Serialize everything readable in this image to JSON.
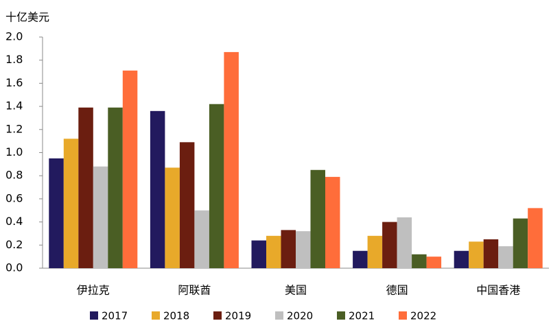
{
  "chart_data": {
    "type": "bar",
    "y_axis_label": "十亿美元",
    "categories": [
      "伊拉克",
      "阿联酋",
      "美国",
      "德国",
      "中国香港"
    ],
    "series": [
      {
        "name": "2017",
        "color": "#221a5e",
        "values": [
          0.95,
          1.36,
          0.24,
          0.15,
          0.15
        ]
      },
      {
        "name": "2018",
        "color": "#e8a92a",
        "values": [
          1.12,
          0.87,
          0.28,
          0.28,
          0.23
        ]
      },
      {
        "name": "2019",
        "color": "#6b1e10",
        "values": [
          1.39,
          1.09,
          0.33,
          0.4,
          0.25
        ]
      },
      {
        "name": "2020",
        "color": "#bfbfbf",
        "values": [
          0.88,
          0.5,
          0.32,
          0.44,
          0.19
        ]
      },
      {
        "name": "2021",
        "color": "#4a5e24",
        "values": [
          1.39,
          1.42,
          0.85,
          0.12,
          0.43
        ]
      },
      {
        "name": "2022",
        "color": "#ff6d3a",
        "values": [
          1.71,
          1.87,
          0.79,
          0.1,
          0.52
        ]
      }
    ],
    "ylim": [
      0,
      2
    ],
    "yticks": [
      {
        "value": 0,
        "label": "0.0"
      },
      0.2,
      0.4,
      0.6,
      0.8,
      {
        "value": 1,
        "label": "1.0"
      },
      1.2,
      1.4,
      1.6,
      1.8,
      {
        "value": 2,
        "label": "2.0"
      }
    ],
    "legend": "bottom"
  }
}
